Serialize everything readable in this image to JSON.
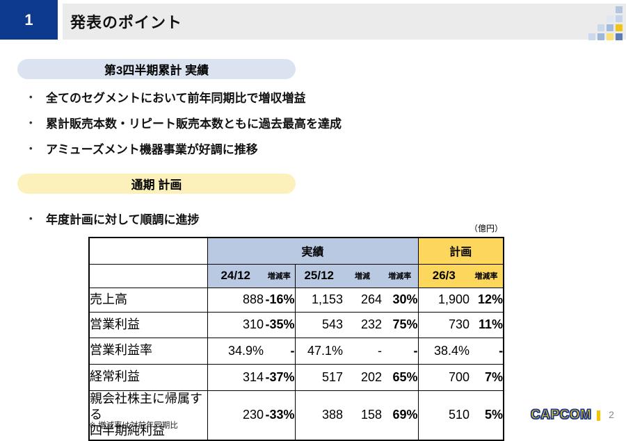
{
  "header": {
    "number": "1",
    "title": "発表のポイント"
  },
  "decoration": {
    "squares": [
      {
        "r": 0,
        "c": 3,
        "color": "#b3c6e0"
      },
      {
        "r": 1,
        "c": 2,
        "color": "#dfe7f3"
      },
      {
        "r": 1,
        "c": 3,
        "color": "#c6d4e9"
      },
      {
        "r": 2,
        "c": 1,
        "color": "#ccd8eb"
      },
      {
        "r": 2,
        "c": 2,
        "color": "#a3bbdc"
      },
      {
        "r": 2,
        "c": 3,
        "color": "#f2c314"
      },
      {
        "r": 3,
        "c": 0,
        "color": "#ccd8eb"
      },
      {
        "r": 3,
        "c": 1,
        "color": "#9db7d8"
      },
      {
        "r": 3,
        "c": 2,
        "color": "#f9e178"
      },
      {
        "r": 3,
        "c": 3,
        "color": "#5b7fb5"
      }
    ]
  },
  "sections": [
    {
      "pill_label": "第3四半期累計 実績",
      "bullet_glyph": "•",
      "bullets": [
        "全てのセグメントにおいて前年同期比で増収増益",
        "累計販売本数・リピート販売本数ともに過去最高を達成",
        "アミューズメント機器事業が好調に推移"
      ]
    },
    {
      "pill_label": "通期 計画",
      "bullet_glyph": "•",
      "bullets": [
        "年度計画に対して順調に進捗"
      ]
    }
  ],
  "table": {
    "unit_label": "（億円）",
    "groups": {
      "actual": "実績",
      "plan": "計画"
    },
    "columns": {
      "g1_period": "24/12",
      "g1_rate": "増減率",
      "g2_period": "25/12",
      "g2_change": "増減",
      "g2_rate": "増減率",
      "g3_period": "26/3",
      "g3_rate": "増減率"
    },
    "rows": [
      {
        "label1": "売上高",
        "label2": "",
        "g1_val": "888",
        "g1_rate": "-16%",
        "g2_val": "1,153",
        "g2_chg": "264",
        "g2_rate": "30%",
        "g3_val": "1,900",
        "g3_rate": "12%"
      },
      {
        "label1": "営業利益",
        "label2": "",
        "g1_val": "310",
        "g1_rate": "-35%",
        "g2_val": "543",
        "g2_chg": "232",
        "g2_rate": "75%",
        "g3_val": "730",
        "g3_rate": "11%"
      },
      {
        "label1": "営業利益率",
        "label2": "",
        "g1_val": "34.9%",
        "g1_rate": "-",
        "g2_val": "47.1%",
        "g2_chg": "-",
        "g2_rate": "-",
        "g3_val": "38.4%",
        "g3_rate": "-"
      },
      {
        "label1": "経常利益",
        "label2": "",
        "g1_val": "314",
        "g1_rate": "-37%",
        "g2_val": "517",
        "g2_chg": "202",
        "g2_rate": "65%",
        "g3_val": "700",
        "g3_rate": "7%"
      },
      {
        "label1": "親会社株主に帰属する",
        "label2": "四半期純利益",
        "g1_val": "230",
        "g1_rate": "-33%",
        "g2_val": "388",
        "g2_chg": "158",
        "g2_rate": "69%",
        "g3_val": "510",
        "g3_rate": "5%"
      }
    ],
    "footnote": "※ 増減率は対前年同期比"
  },
  "footer": {
    "logo_text": "CAPCOM",
    "page_number": "2"
  },
  "colors": {
    "header_blue": "#0d3a8c",
    "bar_gray": "#ebebeb",
    "pill_blue": "#dbe3f1",
    "pill_yellow": "#fcf0bb",
    "table_header_blue": "#b9c9e2",
    "table_header_yellow": "#fdd75c",
    "logo_gold": "#fcca0f",
    "logo_outline": "#19388a"
  }
}
